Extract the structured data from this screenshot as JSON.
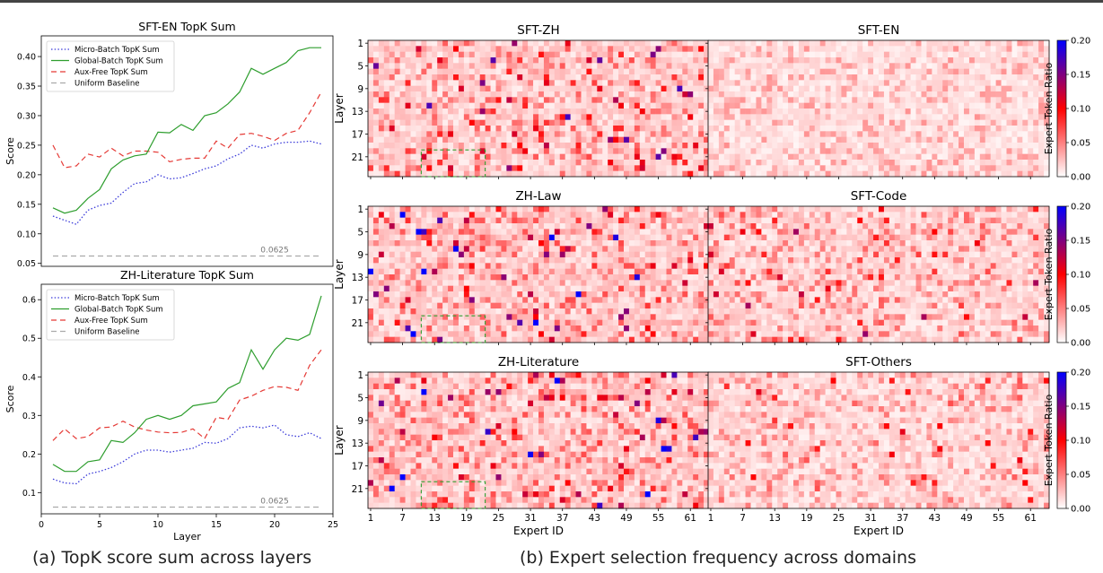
{
  "captions": {
    "left": "(a) TopK score sum across layers",
    "right": "(b) Expert selection frequency across domains"
  },
  "chart_data": [
    {
      "type": "line",
      "title": "SFT-EN TopK Sum",
      "ylabel": "Score",
      "xlabel": "",
      "xlim": [
        0,
        25
      ],
      "ylim": [
        0.045,
        0.435
      ],
      "yticks": [
        0.05,
        0.1,
        0.15,
        0.2,
        0.25,
        0.3,
        0.35,
        0.4
      ],
      "x": [
        1,
        2,
        3,
        4,
        5,
        6,
        7,
        8,
        9,
        10,
        11,
        12,
        13,
        14,
        15,
        16,
        17,
        18,
        19,
        20,
        21,
        22,
        23,
        24
      ],
      "legend_position": "top-left",
      "series": [
        {
          "name": "Micro-Batch TopK Sum",
          "color": "#3b3bd9",
          "dash": "dotted",
          "values": [
            0.13,
            0.123,
            0.116,
            0.14,
            0.148,
            0.152,
            0.17,
            0.185,
            0.188,
            0.2,
            0.193,
            0.195,
            0.202,
            0.21,
            0.215,
            0.227,
            0.235,
            0.25,
            0.245,
            0.252,
            0.255,
            0.255,
            0.257,
            0.252
          ]
        },
        {
          "name": "Global-Batch TopK Sum",
          "color": "#2e9e2e",
          "dash": "solid",
          "values": [
            0.144,
            0.135,
            0.14,
            0.16,
            0.175,
            0.21,
            0.225,
            0.232,
            0.235,
            0.272,
            0.271,
            0.285,
            0.275,
            0.3,
            0.305,
            0.32,
            0.34,
            0.38,
            0.37,
            0.38,
            0.39,
            0.41,
            0.415,
            0.415
          ]
        },
        {
          "name": "Aux-Free TopK Sum",
          "color": "#e53935",
          "dash": "dashed",
          "values": [
            0.25,
            0.212,
            0.215,
            0.235,
            0.23,
            0.245,
            0.232,
            0.24,
            0.24,
            0.238,
            0.222,
            0.226,
            0.228,
            0.228,
            0.257,
            0.245,
            0.268,
            0.27,
            0.265,
            0.258,
            0.27,
            0.275,
            0.305,
            0.34
          ]
        },
        {
          "name": "Uniform Baseline",
          "color": "#aaaaaa",
          "dash": "dashed",
          "values": [
            0.0625,
            0.0625,
            0.0625,
            0.0625,
            0.0625,
            0.0625,
            0.0625,
            0.0625,
            0.0625,
            0.0625,
            0.0625,
            0.0625,
            0.0625,
            0.0625,
            0.0625,
            0.0625,
            0.0625,
            0.0625,
            0.0625,
            0.0625,
            0.0625,
            0.0625,
            0.0625,
            0.0625
          ]
        }
      ],
      "annotation": "0.0625"
    },
    {
      "type": "line",
      "title": "ZH-Literature TopK Sum",
      "ylabel": "Score",
      "xlabel": "Layer",
      "xlim": [
        0,
        25
      ],
      "ylim": [
        0.045,
        0.64
      ],
      "yticks": [
        0.1,
        0.2,
        0.3,
        0.4,
        0.5,
        0.6
      ],
      "xticks": [
        0,
        5,
        10,
        15,
        20,
        25
      ],
      "x": [
        1,
        2,
        3,
        4,
        5,
        6,
        7,
        8,
        9,
        10,
        11,
        12,
        13,
        14,
        15,
        16,
        17,
        18,
        19,
        20,
        21,
        22,
        23,
        24
      ],
      "legend_position": "top-left",
      "series": [
        {
          "name": "Micro-Batch TopK Sum",
          "color": "#3b3bd9",
          "dash": "dotted",
          "values": [
            0.135,
            0.125,
            0.123,
            0.148,
            0.155,
            0.165,
            0.18,
            0.2,
            0.21,
            0.21,
            0.205,
            0.21,
            0.215,
            0.23,
            0.228,
            0.24,
            0.268,
            0.272,
            0.268,
            0.275,
            0.25,
            0.245,
            0.255,
            0.24
          ]
        },
        {
          "name": "Global-Batch TopK Sum",
          "color": "#2e9e2e",
          "dash": "solid",
          "values": [
            0.173,
            0.155,
            0.155,
            0.18,
            0.185,
            0.235,
            0.23,
            0.255,
            0.29,
            0.3,
            0.29,
            0.3,
            0.325,
            0.33,
            0.335,
            0.37,
            0.385,
            0.47,
            0.42,
            0.47,
            0.5,
            0.495,
            0.51,
            0.61
          ]
        },
        {
          "name": "Aux-Free TopK Sum",
          "color": "#e53935",
          "dash": "dashed",
          "values": [
            0.235,
            0.265,
            0.24,
            0.245,
            0.268,
            0.27,
            0.285,
            0.27,
            0.262,
            0.257,
            0.255,
            0.256,
            0.265,
            0.24,
            0.295,
            0.29,
            0.34,
            0.35,
            0.365,
            0.375,
            0.373,
            0.365,
            0.43,
            0.47
          ]
        },
        {
          "name": "Uniform Baseline",
          "color": "#aaaaaa",
          "dash": "dashed",
          "values": [
            0.0625,
            0.0625,
            0.0625,
            0.0625,
            0.0625,
            0.0625,
            0.0625,
            0.0625,
            0.0625,
            0.0625,
            0.0625,
            0.0625,
            0.0625,
            0.0625,
            0.0625,
            0.0625,
            0.0625,
            0.0625,
            0.0625,
            0.0625,
            0.0625,
            0.0625,
            0.0625,
            0.0625
          ]
        }
      ],
      "annotation": "0.0625"
    },
    {
      "type": "heatmap",
      "panels": [
        {
          "title": "SFT-ZH",
          "seed": 11,
          "intensity": 1.0,
          "highlight": true,
          "row": 0,
          "col": 0
        },
        {
          "title": "SFT-EN",
          "seed": 23,
          "intensity": 0.25,
          "highlight": false,
          "row": 0,
          "col": 1
        },
        {
          "title": "ZH-Law",
          "seed": 37,
          "intensity": 1.25,
          "highlight": true,
          "row": 1,
          "col": 0
        },
        {
          "title": "SFT-Code",
          "seed": 51,
          "intensity": 0.75,
          "highlight": false,
          "row": 1,
          "col": 1
        },
        {
          "title": "ZH-Literature",
          "seed": 67,
          "intensity": 1.2,
          "highlight": true,
          "row": 2,
          "col": 0
        },
        {
          "title": "SFT-Others",
          "seed": 83,
          "intensity": 0.55,
          "highlight": false,
          "row": 2,
          "col": 1
        }
      ],
      "n_experts": 64,
      "n_layers": 24,
      "ylabel": "Layer",
      "xlabel": "Expert ID",
      "yticks": [
        "1",
        "5",
        "9",
        "13",
        "17",
        "21"
      ],
      "xticks": [
        "1",
        "7",
        "13",
        "19",
        "25",
        "31",
        "37",
        "43",
        "49",
        "55",
        "61"
      ],
      "colorbar": {
        "label": "Expert Token Ratio",
        "range": [
          0.0,
          0.2
        ],
        "ticks": [
          "0.00",
          "0.05",
          "0.10",
          "0.15",
          "0.20"
        ],
        "colors": [
          "#ffffff",
          "#ff0000",
          "#0000ff"
        ]
      }
    }
  ]
}
